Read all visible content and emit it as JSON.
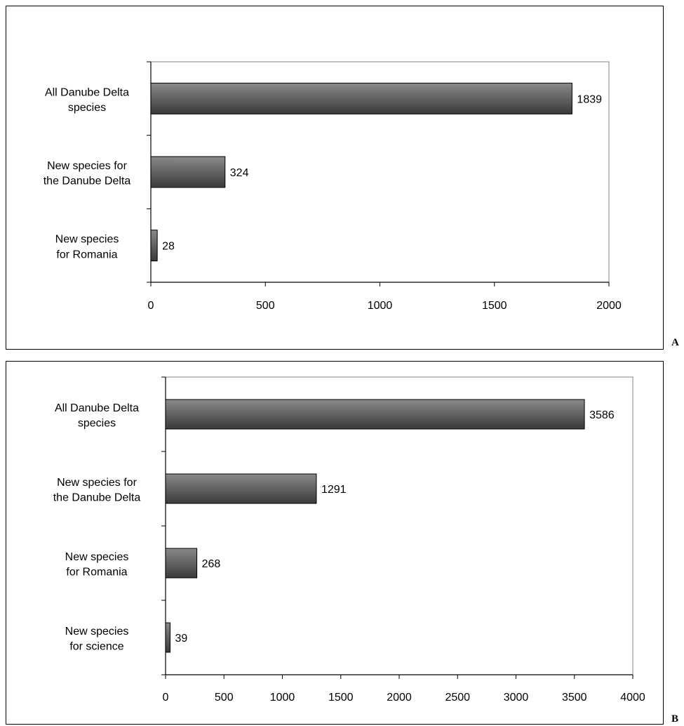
{
  "chart_data": [
    {
      "type": "bar",
      "orientation": "horizontal",
      "panel_label": "A",
      "categories": [
        [
          "All Danube Delta",
          "species"
        ],
        [
          "New species for",
          "the Danube Delta"
        ],
        [
          "New species",
          "for Romania"
        ]
      ],
      "values": [
        1839,
        324,
        28
      ],
      "xlim": [
        0,
        2000
      ],
      "xticks": [
        0,
        500,
        1000,
        1500,
        2000
      ],
      "xtick_labels": [
        "0",
        "500",
        "1000",
        "1500",
        "2000"
      ],
      "grid": false,
      "title": "",
      "xlabel": "",
      "ylabel": ""
    },
    {
      "type": "bar",
      "orientation": "horizontal",
      "panel_label": "B",
      "categories": [
        [
          "All Danube Delta",
          "species"
        ],
        [
          "New species for",
          "the Danube Delta"
        ],
        [
          "New species",
          "for Romania"
        ],
        [
          "New species",
          "for science"
        ]
      ],
      "values": [
        3586,
        1291,
        268,
        39
      ],
      "xlim": [
        0,
        4000
      ],
      "xticks": [
        0,
        500,
        1000,
        1500,
        2000,
        2500,
        3000,
        3500,
        4000
      ],
      "xtick_labels": [
        "0",
        "500",
        "1000",
        "1500",
        "2000",
        "2500",
        "3000",
        "3500",
        "4000"
      ],
      "grid": false,
      "title": "",
      "xlabel": "",
      "ylabel": ""
    }
  ],
  "colors": {
    "bar_dark": "#3a3a3a",
    "bar_light": "#8a8a8a",
    "axis": "#000000",
    "plot_frame": "#808080"
  }
}
